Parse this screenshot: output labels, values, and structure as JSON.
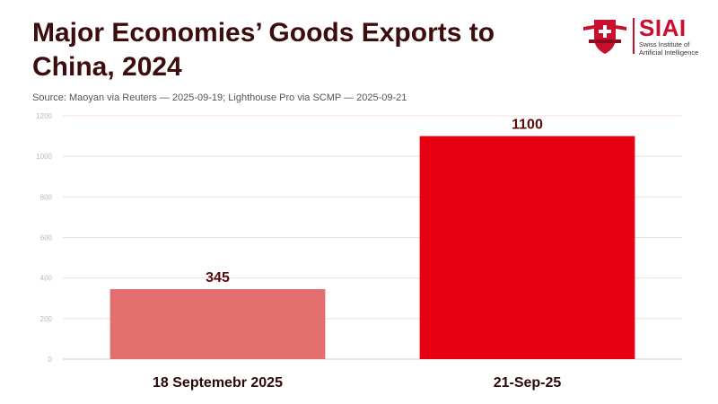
{
  "header": {
    "title": "Major Economies’ Goods Exports to China, 2024",
    "source": "Source: Maoyan via Reuters — 2025-09-19; Lighthouse Pro via SCMP — 2025-09-21"
  },
  "logo": {
    "brand": "SIAI",
    "subtitle": "Swiss Institute of Artificial Intelligence",
    "primary_color": "#c8102e"
  },
  "chart_data": {
    "type": "bar",
    "title": "Major Economies’ Goods Exports to China, 2024",
    "categories": [
      "18 Septemebr 2025",
      "21-Sep-25"
    ],
    "values": [
      345,
      1100
    ],
    "value_labels": [
      "345",
      "1100"
    ],
    "bar_colors": [
      "#e36e6e",
      "#e60012"
    ],
    "xlabel": "",
    "ylabel": "",
    "ylim": [
      0,
      1200
    ],
    "yticks": [
      0,
      200,
      400,
      600,
      800,
      1000,
      1200
    ],
    "grid": true,
    "legend": "none"
  }
}
